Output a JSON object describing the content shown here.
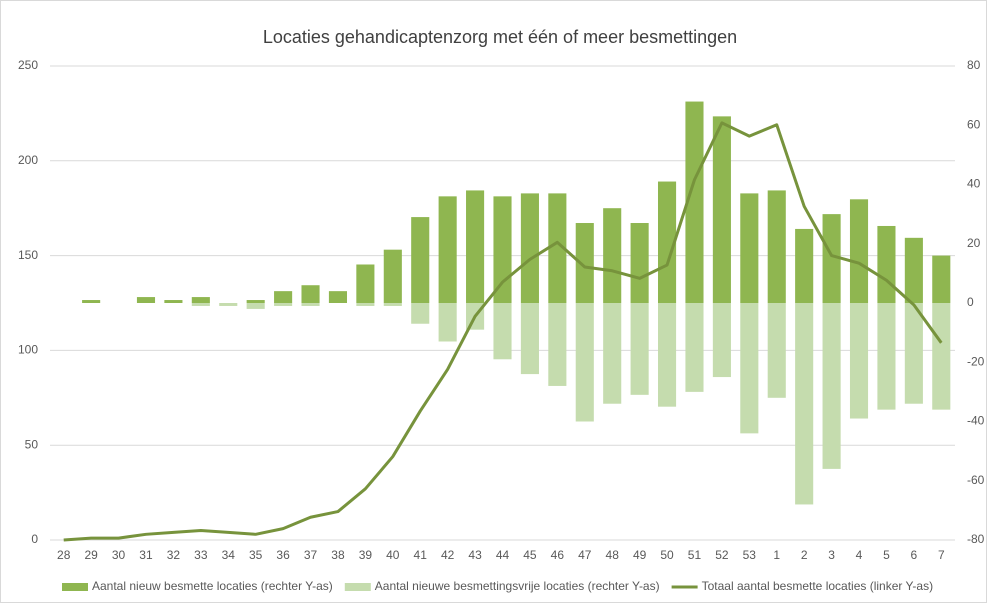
{
  "chart_data": {
    "type": "bar",
    "title": "Locaties gehandicaptenzorg met één of meer besmettingen",
    "categories": [
      "28",
      "29",
      "30",
      "31",
      "32",
      "33",
      "34",
      "35",
      "36",
      "37",
      "38",
      "39",
      "40",
      "41",
      "42",
      "43",
      "44",
      "45",
      "46",
      "47",
      "48",
      "49",
      "50",
      "51",
      "52",
      "53",
      "1",
      "2",
      "3",
      "4",
      "5",
      "6",
      "7"
    ],
    "series": [
      {
        "name": "Aantal nieuw besmette locaties (rechter Y-as)",
        "color": "#8fb650",
        "axis": "y2",
        "type": "bar",
        "values": [
          0,
          1,
          0,
          2,
          1,
          2,
          0,
          1,
          4,
          6,
          4,
          13,
          18,
          29,
          36,
          38,
          36,
          37,
          37,
          27,
          32,
          27,
          41,
          68,
          63,
          37,
          38,
          25,
          30,
          35,
          26,
          22,
          16
        ]
      },
      {
        "name": "Aantal nieuwe besmettingsvrije locaties (rechter Y-as)",
        "color": "#c5dcae",
        "axis": "y2",
        "type": "bar",
        "values": [
          0,
          0,
          0,
          0,
          0,
          -1,
          -1,
          -2,
          -1,
          -1,
          0,
          -1,
          -1,
          -7,
          -13,
          -9,
          -19,
          -24,
          -28,
          -40,
          -34,
          -31,
          -35,
          -30,
          -25,
          -44,
          -32,
          -68,
          -56,
          -39,
          -36,
          -34,
          -36
        ]
      },
      {
        "name": "Totaal aantal besmette locaties (linker Y-as)",
        "color": "#77933c",
        "axis": "y",
        "type": "line",
        "values": [
          0,
          1,
          1,
          3,
          4,
          5,
          4,
          3,
          6,
          12,
          15,
          27,
          44,
          68,
          90,
          118,
          136,
          148,
          157,
          144,
          142,
          138,
          145,
          190,
          220,
          213,
          219,
          176,
          150,
          146,
          137,
          124,
          104
        ]
      }
    ],
    "ylim": [
      0,
      250
    ],
    "yticks": [
      0,
      50,
      100,
      150,
      200,
      250
    ],
    "y2lim": [
      -80,
      80
    ],
    "y2ticks": [
      -80,
      -60,
      -40,
      -20,
      0,
      20,
      40,
      60,
      80
    ],
    "grid": true,
    "legend": "bottom"
  }
}
